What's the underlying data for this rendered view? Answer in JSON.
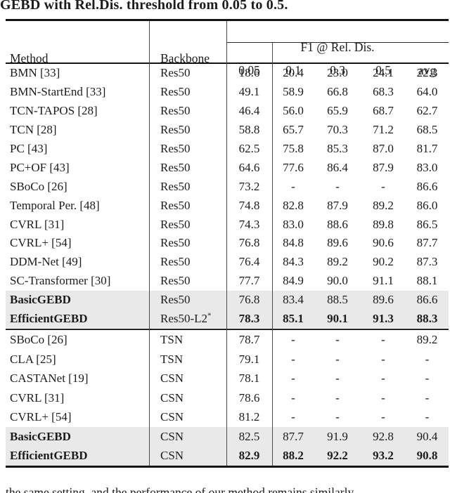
{
  "caption": "GEBD with Rel.Dis. threshold from 0.05 to 0.5.",
  "table": {
    "headers": {
      "method": "Method",
      "backbone": "Backbone",
      "group": "F1 @ Rel. Dis.",
      "thresholds": [
        "0.05",
        "0.1",
        "0.3",
        "0.5",
        "avg"
      ]
    },
    "sections": [
      {
        "rows": [
          {
            "method": "BMN [33]",
            "backbone": "Res50",
            "values": [
              "18.6",
              "20.4",
              "23.0",
              "24.1",
              "22.3"
            ]
          },
          {
            "method": "BMN-StartEnd [33]",
            "backbone": "Res50",
            "values": [
              "49.1",
              "58.9",
              "66.8",
              "68.3",
              "64.0"
            ]
          },
          {
            "method": "TCN-TAPOS [28]",
            "backbone": "Res50",
            "values": [
              "46.4",
              "56.0",
              "65.9",
              "68.7",
              "62.7"
            ]
          },
          {
            "method": "TCN [28]",
            "backbone": "Res50",
            "values": [
              "58.8",
              "65.7",
              "70.3",
              "71.2",
              "68.5"
            ]
          },
          {
            "method": "PC [43]",
            "backbone": "Res50",
            "values": [
              "62.5",
              "75.8",
              "85.3",
              "87.0",
              "81.7"
            ]
          },
          {
            "method": "PC+OF [43]",
            "backbone": "Res50",
            "values": [
              "64.6",
              "77.6",
              "86.4",
              "87.9",
              "83.0"
            ]
          },
          {
            "method": "SBoCo [26]",
            "backbone": "Res50",
            "values": [
              "73.2",
              "-",
              "-",
              "-",
              "86.6"
            ]
          },
          {
            "method": "Temporal Per. [48]",
            "backbone": "Res50",
            "values": [
              "74.8",
              "82.8",
              "87.9",
              "89.2",
              "86.0"
            ]
          },
          {
            "method": "CVRL [31]",
            "backbone": "Res50",
            "values": [
              "74.3",
              "83.0",
              "88.6",
              "89.8",
              "86.5"
            ]
          },
          {
            "method": "CVRL+ [54]",
            "backbone": "Res50",
            "values": [
              "76.8",
              "84.8",
              "89.6",
              "90.6",
              "87.7"
            ]
          },
          {
            "method": "DDM-Net [49]",
            "backbone": "Res50",
            "values": [
              "76.4",
              "84.3",
              "89.2",
              "90.2",
              "87.3"
            ]
          },
          {
            "method": "SC-Transformer [30]",
            "backbone": "Res50",
            "values": [
              "77.7",
              "84.9",
              "90.0",
              "91.1",
              "88.1"
            ]
          },
          {
            "method": "BasicGEBD",
            "backbone": "Res50",
            "values": [
              "76.8",
              "83.4",
              "88.5",
              "89.6",
              "86.6"
            ],
            "bold_method": true,
            "highlight": true
          },
          {
            "method": "EfficientGEBD",
            "backbone": "Res50-L2",
            "backbone_sup": "*",
            "values": [
              "78.3",
              "85.1",
              "90.1",
              "91.3",
              "88.3"
            ],
            "bold_method": true,
            "bold_values": true,
            "highlight": true
          }
        ]
      },
      {
        "rows": [
          {
            "method": "SBoCo [26]",
            "backbone": "TSN",
            "values": [
              "78.7",
              "-",
              "-",
              "-",
              "89.2"
            ]
          },
          {
            "method": "CLA [25]",
            "backbone": "TSN",
            "values": [
              "79.1",
              "-",
              "-",
              "-",
              "-"
            ]
          },
          {
            "method": "CASTANet [19]",
            "backbone": "CSN",
            "values": [
              "78.1",
              "-",
              "-",
              "-",
              "-"
            ]
          },
          {
            "method": "CVRL [31]",
            "backbone": "CSN",
            "values": [
              "78.6",
              "-",
              "-",
              "-",
              "-"
            ]
          },
          {
            "method": "CVRL+ [54]",
            "backbone": "CSN",
            "values": [
              "81.2",
              "-",
              "-",
              "-",
              "-"
            ]
          },
          {
            "method": "BasicGEBD",
            "backbone": "CSN",
            "values": [
              "82.5",
              "87.7",
              "91.9",
              "92.8",
              "90.4"
            ],
            "bold_method": true,
            "highlight": true
          },
          {
            "method": "EfficientGEBD",
            "backbone": "CSN",
            "values": [
              "82.9",
              "88.2",
              "92.2",
              "93.2",
              "90.8"
            ],
            "bold_method": true,
            "bold_values": true,
            "highlight": true
          }
        ]
      }
    ]
  },
  "footer_fragment": "the same setting, and the performance of our method remains similarly",
  "colors": {
    "highlight": "#e9e9e9",
    "rule": "#141414",
    "text": "#1c1c1c",
    "background": "#ffffff"
  }
}
